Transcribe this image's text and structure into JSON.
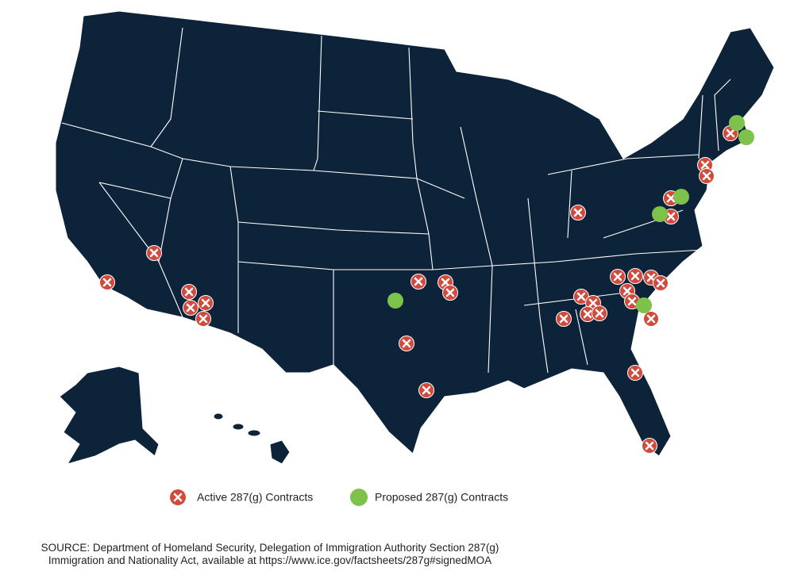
{
  "legend": {
    "items": [
      {
        "label": "Active 287(g) Contracts"
      },
      {
        "label": "Proposed 287(g) Contracts"
      }
    ]
  },
  "source": {
    "lines": [
      "SOURCE: Department of Homeland Security, Delegation of Immigration Authority Section 287(g)",
      "Immigration and Nationality Act, available at https://www.ice.gov/factsheets/287g#signedMOA"
    ]
  }
}
